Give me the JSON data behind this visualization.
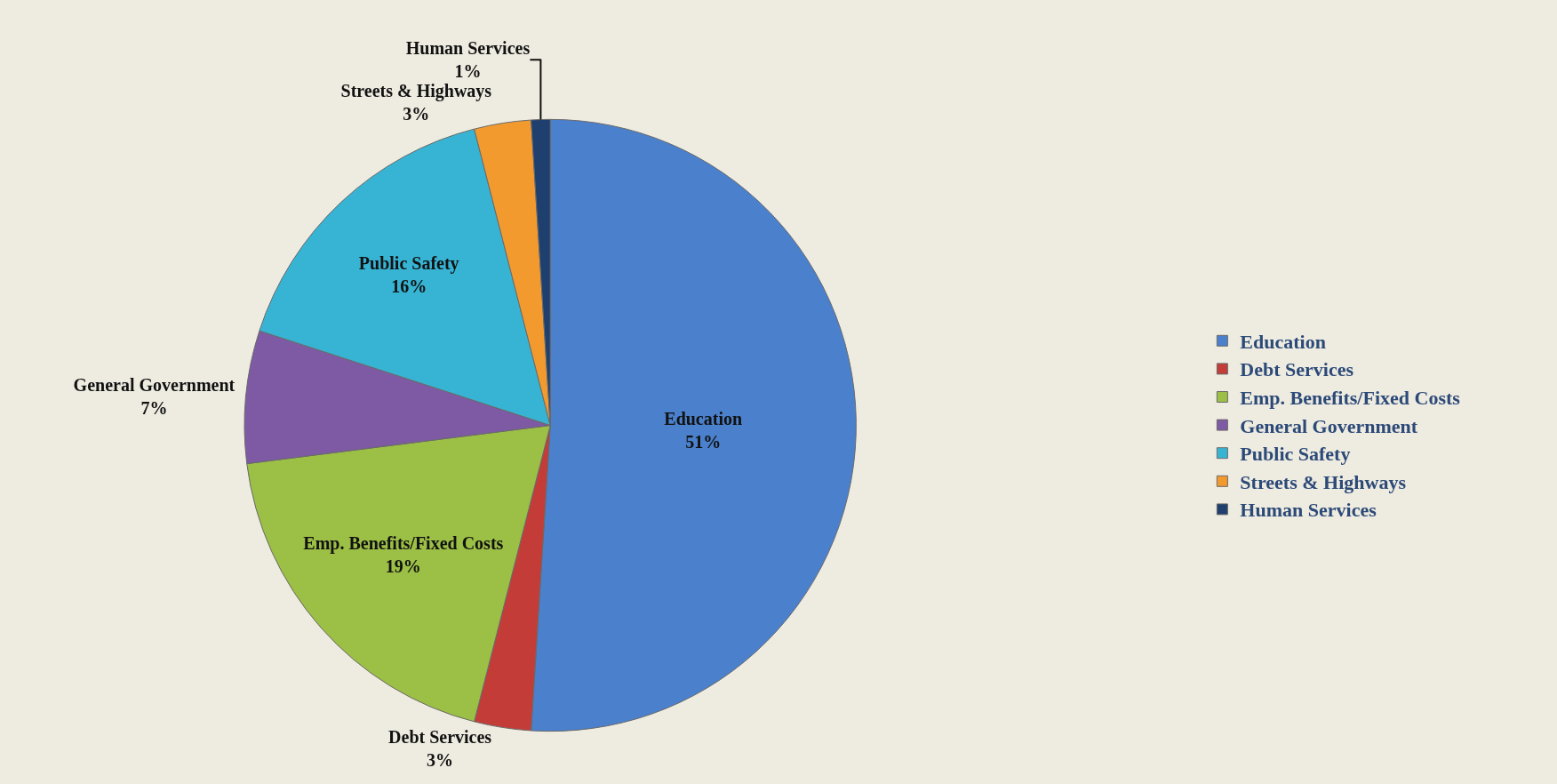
{
  "chart_data": {
    "type": "pie",
    "categories": [
      "Education",
      "Debt Services",
      "Emp. Benefits/Fixed Costs",
      "General Government",
      "Public Safety",
      "Streets & Highways",
      "Human Services"
    ],
    "values": [
      51,
      3,
      19,
      7,
      16,
      3,
      1
    ],
    "value_labels": [
      "51%",
      "3%",
      "19%",
      "7%",
      "16%",
      "3%",
      "1%"
    ],
    "colors": [
      "#4a80cc",
      "#c43c38",
      "#9cbf46",
      "#7d5aa3",
      "#37b4d4",
      "#f39a2e",
      "#1f3f6e"
    ],
    "legend": "right"
  }
}
